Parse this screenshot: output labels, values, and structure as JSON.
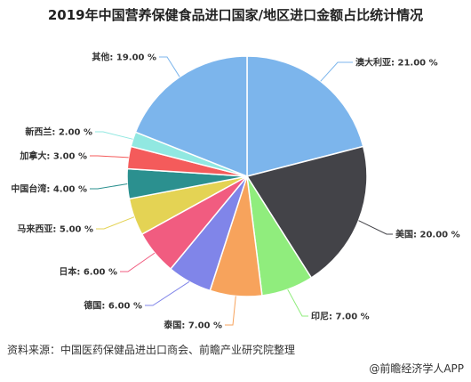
{
  "chart_data": {
    "type": "pie",
    "title": "2019年中国营养保健食品进口国家/地区进口金额占比统计情况",
    "categories": [
      "澳大利亚",
      "美国",
      "印尼",
      "泰国",
      "德国",
      "日本",
      "马来西亚",
      "中国台湾",
      "加拿大",
      "新西兰",
      "其他"
    ],
    "values": [
      21.0,
      20.0,
      7.0,
      7.0,
      6.0,
      6.0,
      5.0,
      4.0,
      3.0,
      2.0,
      19.0
    ],
    "labels": [
      "澳大利亚: 21.00 %",
      "美国: 20.00 %",
      "印尼: 7.00 %",
      "泰国: 7.00 %",
      "德国: 6.00 %",
      "日本: 6.00 %",
      "马来西亚: 5.00 %",
      "中国台湾: 4.00 %",
      "加拿大: 3.00 %",
      "新西兰: 2.00 %",
      "其他: 19.00 %"
    ],
    "colors": [
      "#7cb5ec",
      "#434348",
      "#90ed7d",
      "#f7a35c",
      "#8085e9",
      "#f15c80",
      "#e4d354",
      "#2b908f",
      "#f45b5b",
      "#91e8e1",
      "#7cb5ec"
    ],
    "unit": "%"
  },
  "footer": {
    "source": "资料来源：中国医药保健品进出口商会、前瞻产业研究院整理",
    "brand": "@前瞻经济学人APP"
  }
}
